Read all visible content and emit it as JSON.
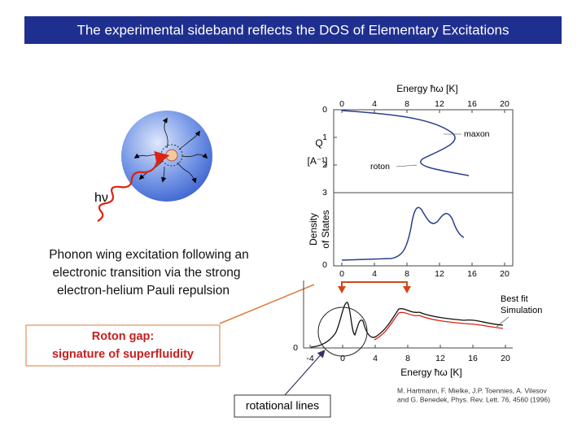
{
  "title": "The experimental sideband reflects the DOS of Elementary Excitations",
  "photon_label": "hν",
  "description": [
    "Phonon wing excitation following an",
    "electronic transition via the strong",
    "electron-helium Pauli repulsion"
  ],
  "callout": [
    "Roton gap:",
    "signature of superfluidity"
  ],
  "rotational_label": "rotational lines",
  "upper_figure": {
    "x_axis_label": "Energy ħω [K]",
    "x_ticks_top": [
      "0",
      "4",
      "8",
      "12",
      "16",
      "20"
    ],
    "q_axis_label": [
      "Q",
      "[A⁻¹]"
    ],
    "q_ticks": [
      "0",
      "1",
      "2",
      "3"
    ],
    "annotations": [
      "maxon",
      "roton"
    ],
    "dos_axis_label": [
      "Density",
      "of States"
    ],
    "dos_ticks": [
      "0"
    ],
    "x_ticks_bottom": [
      "0",
      "4",
      "8",
      "12",
      "16",
      "20"
    ]
  },
  "lower_figure": {
    "legend": [
      "Best fit",
      "Simulation"
    ],
    "y_ticks": [
      "0"
    ],
    "x_ticks": [
      "-4",
      "0",
      "4",
      "8",
      "12",
      "16",
      "20"
    ],
    "x_axis_label": "Energy ħω [K]"
  },
  "citation": [
    "M. Hartmann, F. Mielke, J.P. Toennies, A. Vilesov",
    "and G. Benedek, Phys. Rev. Lett. 76, 4560 (1996)"
  ]
}
